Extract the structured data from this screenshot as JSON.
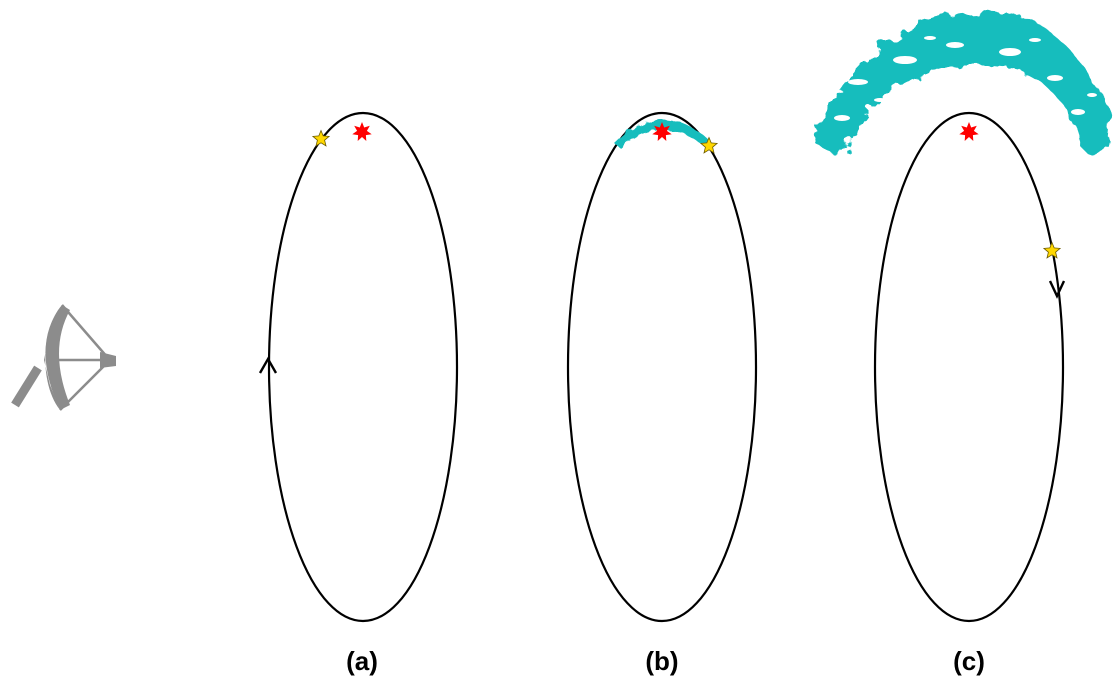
{
  "colors": {
    "background": "#ffffff",
    "orbit": "#000000",
    "central_star": "#ff0000",
    "orbiting_star": "#ffd700",
    "orbiting_star_outline": "#6b5a00",
    "debris": "#12bdbd",
    "antenna": "#8c8c8c"
  },
  "icons": {
    "antenna": "radio-telescope-icon",
    "central_star": "red-star-burst-icon",
    "orbiting_star": "yellow-star-icon",
    "orbit_arrow": "arrowhead-icon"
  },
  "panels": [
    {
      "label": "(a)",
      "debris_extent": "none",
      "arrow_direction": "up"
    },
    {
      "label": "(b)",
      "debris_extent": "small",
      "arrow_direction": "none"
    },
    {
      "label": "(c)",
      "debris_extent": "large",
      "arrow_direction": "down"
    }
  ]
}
